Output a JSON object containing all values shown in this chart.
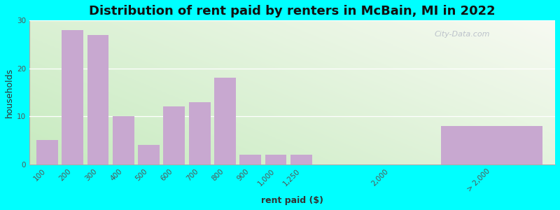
{
  "title": "Distribution of rent paid by renters in McBain, MI in 2022",
  "xlabel": "rent paid ($)",
  "ylabel": "households",
  "bar_labels": [
    "100",
    "200",
    "300",
    "400",
    "500",
    "600",
    "700",
    "800",
    "900",
    "1,000",
    "1,250",
    "2,000",
    "> 2,000"
  ],
  "bar_values": [
    5,
    28,
    27,
    10,
    4,
    12,
    13,
    18,
    2,
    2,
    2,
    0,
    8
  ],
  "bar_color": "#c8a8d0",
  "ylim": [
    0,
    30
  ],
  "yticks": [
    0,
    10,
    20,
    30
  ],
  "outer_bg": "#00ffff",
  "title_fontsize": 13,
  "axis_label_fontsize": 9,
  "tick_fontsize": 7.5,
  "watermark": "City-Data.com"
}
